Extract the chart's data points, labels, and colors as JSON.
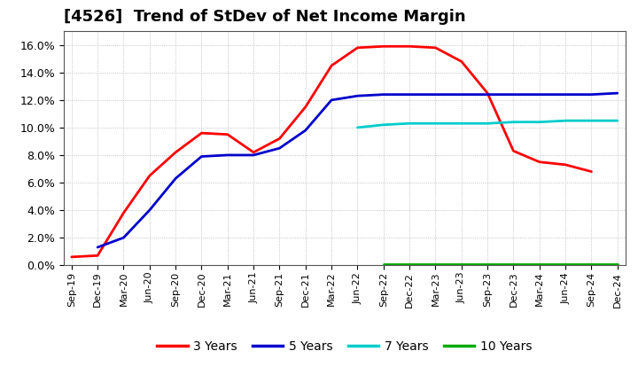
{
  "title": "[4526]  Trend of StDev of Net Income Margin",
  "background_color": "#ffffff",
  "plot_bg_color": "#ffffff",
  "grid_color": "#aaaaaa",
  "ylim": [
    0.0,
    0.17
  ],
  "yticks": [
    0.0,
    0.02,
    0.04,
    0.06,
    0.08,
    0.1,
    0.12,
    0.14,
    0.16
  ],
  "series": {
    "3y": {
      "label": "3 Years",
      "color": "#ff0000",
      "points": [
        [
          0,
          0.006
        ],
        [
          1,
          0.007
        ],
        [
          2,
          0.038
        ],
        [
          3,
          0.065
        ],
        [
          4,
          0.082
        ],
        [
          5,
          0.096
        ],
        [
          6,
          0.095
        ],
        [
          7,
          0.082
        ],
        [
          8,
          0.092
        ],
        [
          9,
          0.115
        ],
        [
          10,
          0.145
        ],
        [
          11,
          0.158
        ],
        [
          12,
          0.159
        ],
        [
          13,
          0.159
        ],
        [
          14,
          0.158
        ],
        [
          15,
          0.148
        ],
        [
          16,
          0.125
        ],
        [
          17,
          0.083
        ],
        [
          18,
          0.075
        ],
        [
          19,
          0.073
        ],
        [
          20,
          0.068
        ]
      ]
    },
    "5y": {
      "label": "5 Years",
      "color": "#0000cc",
      "points": [
        [
          1,
          0.013
        ],
        [
          2,
          0.02
        ],
        [
          3,
          0.04
        ],
        [
          4,
          0.063
        ],
        [
          5,
          0.079
        ],
        [
          6,
          0.08
        ],
        [
          7,
          0.08
        ],
        [
          8,
          0.085
        ],
        [
          9,
          0.098
        ],
        [
          10,
          0.12
        ],
        [
          11,
          0.123
        ],
        [
          12,
          0.124
        ],
        [
          13,
          0.124
        ],
        [
          14,
          0.124
        ],
        [
          15,
          0.124
        ],
        [
          16,
          0.124
        ],
        [
          17,
          0.124
        ],
        [
          18,
          0.124
        ],
        [
          19,
          0.124
        ],
        [
          20,
          0.124
        ],
        [
          21,
          0.125
        ]
      ]
    },
    "7y": {
      "label": "7 Years",
      "color": "#00cccc",
      "points": [
        [
          11,
          0.1
        ],
        [
          12,
          0.102
        ],
        [
          13,
          0.103
        ],
        [
          14,
          0.103
        ],
        [
          15,
          0.103
        ],
        [
          16,
          0.103
        ],
        [
          17,
          0.104
        ],
        [
          18,
          0.104
        ],
        [
          19,
          0.105
        ],
        [
          20,
          0.105
        ],
        [
          21,
          0.105
        ]
      ]
    },
    "10y": {
      "label": "10 Years",
      "color": "#00aa00",
      "points": [
        [
          12,
          0.001
        ],
        [
          13,
          0.001
        ],
        [
          14,
          0.001
        ],
        [
          15,
          0.001
        ],
        [
          16,
          0.001
        ],
        [
          17,
          0.001
        ],
        [
          18,
          0.001
        ],
        [
          19,
          0.001
        ],
        [
          20,
          0.001
        ],
        [
          21,
          0.001
        ]
      ]
    }
  },
  "xtick_labels": [
    "Sep-19",
    "Dec-19",
    "Mar-20",
    "Jun-20",
    "Sep-20",
    "Dec-20",
    "Mar-21",
    "Jun-21",
    "Sep-21",
    "Dec-21",
    "Mar-22",
    "Jun-22",
    "Sep-22",
    "Dec-22",
    "Mar-23",
    "Jun-23",
    "Sep-23",
    "Dec-23",
    "Mar-24",
    "Jun-24",
    "Sep-24",
    "Dec-24"
  ],
  "legend_order": [
    "3y",
    "5y",
    "7y",
    "10y"
  ],
  "title_fontsize": 13,
  "legend_fontsize": 10
}
